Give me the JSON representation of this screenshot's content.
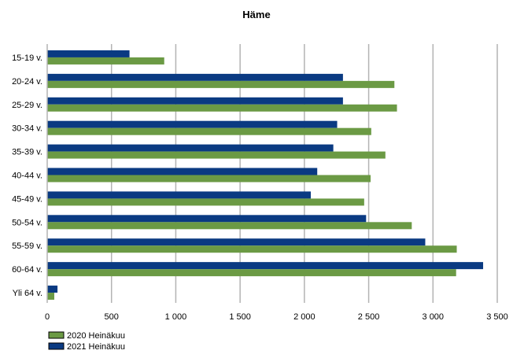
{
  "chart_data": {
    "type": "bar",
    "orientation": "horizontal",
    "title": "Häme",
    "xlabel": "",
    "ylabel": "",
    "xlim": [
      0,
      3500
    ],
    "x_ticks": [
      0,
      500,
      1000,
      1500,
      2000,
      2500,
      3000,
      3500
    ],
    "x_tick_labels": [
      "0",
      "500",
      "1 000",
      "1 500",
      "2 000",
      "2 500",
      "3 000",
      "3 500"
    ],
    "grid": "vertical",
    "legend_position": "bottom-left",
    "categories": [
      "15-19 v.",
      "20-24 v.",
      "25-29 v.",
      "30-34 v.",
      "35-39 v.",
      "40-44 v.",
      "45-49 v.",
      "50-54 v.",
      "55-59 v.",
      "60-64 v.",
      "Yli 64 v."
    ],
    "series": [
      {
        "name": "2021 Heinäkuu",
        "color": "#0a3a82",
        "values": [
          640,
          2300,
          2300,
          2255,
          2225,
          2100,
          2050,
          2480,
          2940,
          3390,
          80
        ]
      },
      {
        "name": "2020 Heinäkuu",
        "color": "#6b9a44",
        "values": [
          910,
          2700,
          2720,
          2520,
          2630,
          2515,
          2465,
          2835,
          3185,
          3180,
          55
        ]
      }
    ],
    "legend_order": [
      "2020 Heinäkuu",
      "2021 Heinäkuu"
    ]
  }
}
